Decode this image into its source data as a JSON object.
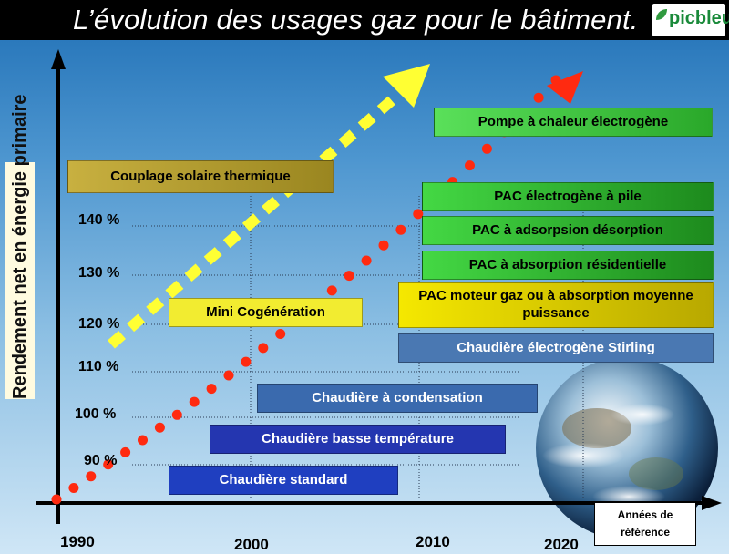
{
  "title": "L’évolution des usages gaz pour le bâtiment.",
  "logo_text": "picbleu",
  "y_axis_label": "Rendement net en énergie primaire",
  "y_ticks": [
    "90 %",
    "100 %",
    "110 %",
    "120 %",
    "130 %",
    "140 %"
  ],
  "x_ticks": [
    "1990",
    "2000",
    "2010",
    "2020"
  ],
  "x_axis_label": "Années de référence",
  "technologies": {
    "standard": "Chaudière standard",
    "basse_temp": "Chaudière basse température",
    "condensation": "Chaudière à condensation",
    "stirling": "Chaudière électrogène Stirling",
    "pac_moteur": "PAC moteur gaz ou à absorption moyenne puissance",
    "pac_abs_res": "PAC à absorption résidentielle",
    "pac_adsorption": "PAC à adsorpsion désorption",
    "pac_pile": "PAC électrogène à pile",
    "pompe_electrogene": "Pompe à chaleur électrogène",
    "cogeneration": "Mini Cogénération",
    "solaire": "Couplage solaire thermique"
  },
  "colors": {
    "standard": "#1f3fc0",
    "basse_temp": "#2436b0",
    "condensation": "#3a6aae",
    "stirling": "#4a78b2",
    "pac_moteur": "#e6d400",
    "pac_green": "#2ea82e",
    "pompe_electrogene": "#3cc83c",
    "cogeneration": "#f2ec30",
    "solaire": "#b8a030",
    "dots": "#ff2a10",
    "dashes": "#ffff33"
  }
}
